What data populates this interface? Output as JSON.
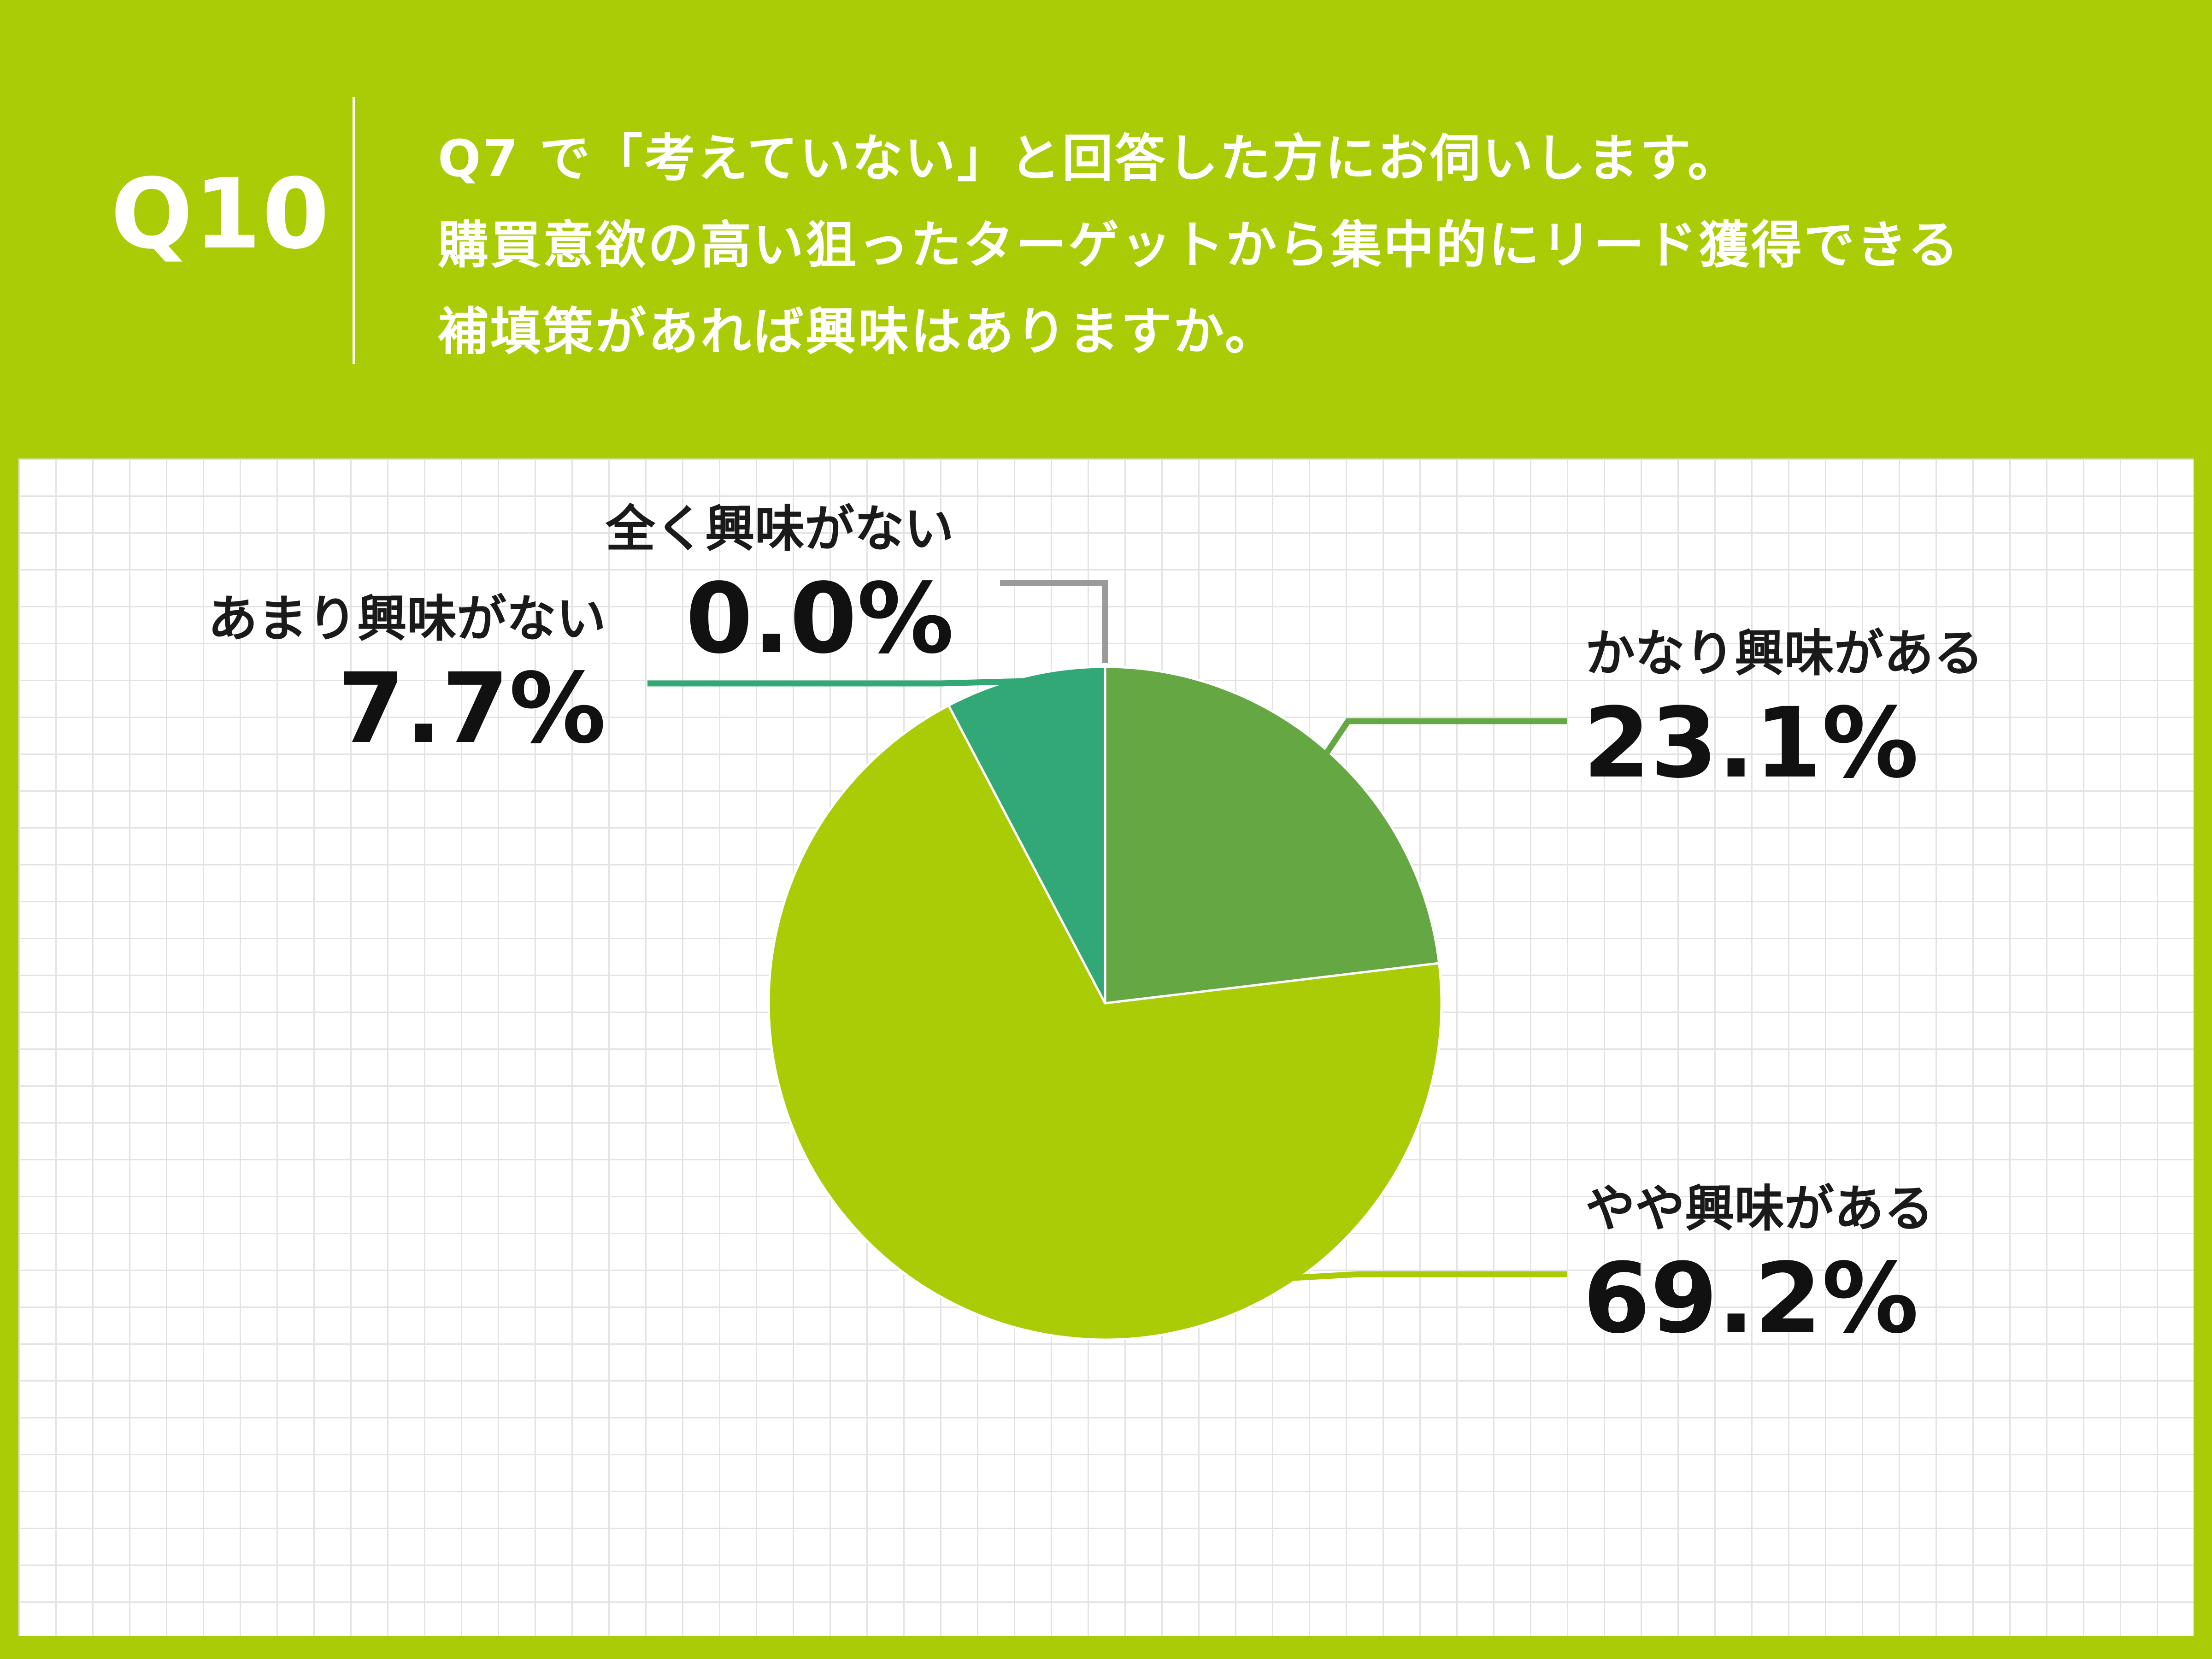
{
  "header": {
    "question_number": "Q10",
    "question_lines": [
      "Q7 で「考えていない」と回答した方にお伺いします。",
      "購買意欲の高い狙ったターゲットから集中的にリード獲得できる",
      "補填策があれば興味はありますか。"
    ]
  },
  "colors": {
    "background": "#aacc06",
    "panel": "#ffffff",
    "grid": "#e3e3e3"
  },
  "chart_data": {
    "type": "pie",
    "start_angle_deg": 0,
    "direction": "clockwise",
    "slices": [
      {
        "label": "かなり興味がある",
        "value": 23.1,
        "value_label": "23.1%",
        "color": "#64a743"
      },
      {
        "label": "やや興味がある",
        "value": 69.2,
        "value_label": "69.2%",
        "color": "#aacc06"
      },
      {
        "label": "あまり興味がない",
        "value": 7.7,
        "value_label": "7.7%",
        "color": "#31a875"
      },
      {
        "label": "全く興味がない",
        "value": 0.0,
        "value_label": "0.0%",
        "color": "#9a9a9a"
      }
    ]
  }
}
